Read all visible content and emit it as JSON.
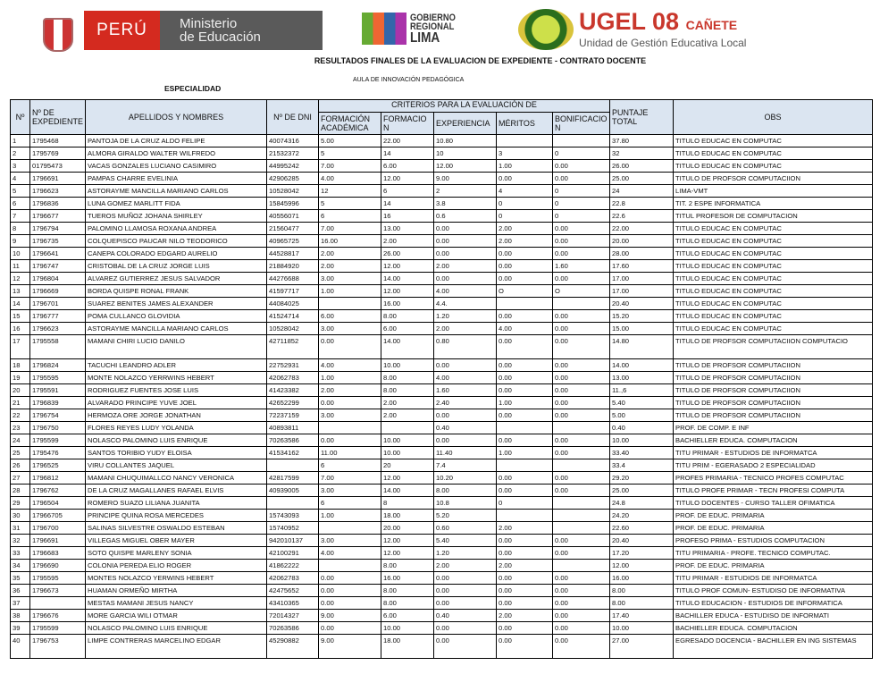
{
  "logos": {
    "peru": "PERÚ",
    "ministerio": "Ministerio",
    "educacion": "de Educación",
    "gobierno": "GOBIERNO",
    "regional": "REGIONAL",
    "lima": "LIMA",
    "ugel": "UGEL 08",
    "canete": "CAÑETE",
    "ugel_sub": "Unidad de Gestión Educativa Local"
  },
  "title": "RESULTADOS FINALES DE LA EVALUACION DE EXPEDIENTE - CONTRATO DOCENTE",
  "subtitle": "AULA DE INNOVACIÓN PEDAGÓGICA",
  "especialidad_label": "ESPECIALIDAD",
  "header": {
    "no": "Nº",
    "exp": "Nº DE EXPEDIENTE",
    "name": "APELLIDOS Y NOMBRES",
    "dni": "Nº DE DNI",
    "criterios": "CRITERIOS PARA LA EVALUACIÓN DE",
    "fa": "FORMACIÓN ACADÉMICA",
    "f": "FORMACION",
    "e": "EXPERIENCIA",
    "m": "MÉRITOS",
    "b": "BONIFICACION",
    "total": "PUNTAJE TOTAL",
    "obs": "OBS"
  },
  "header_color": "#dbe5f1",
  "rows": [
    [
      "1",
      "1795468",
      "PANTOJA DE LA CRUZ ALDO FELIPE",
      "40074316",
      "5.00",
      "22.00",
      "10.80",
      "",
      "",
      "37.80",
      "TITULO EDUCAC EN COMPUTAC"
    ],
    [
      "2",
      "1795769",
      "ALMORA GIRALDO  WALTER WILFREDO",
      "21532372",
      "5",
      "14",
      "10",
      "3",
      "0",
      "32",
      "TITULO EDUCAC EN COMPUTAC"
    ],
    [
      "3",
      "01795473",
      "VACAS GONZALES  LUCIANO CASIMIRO",
      "44995242",
      "7.00",
      "6.00",
      "12.00",
      "1.00",
      "0.00",
      "26.00",
      "TITULO EDUCAC EN COMPUTAC"
    ],
    [
      "4",
      "1796691",
      "PAMPAS CHARRE EVELINIA",
      "42906285",
      "4.00",
      "12.00",
      "9.00",
      "0.00",
      "0.00",
      "25.00",
      "TITULO DE PROFSOR COMPUTACIION"
    ],
    [
      "5",
      "1796623",
      "ASTORAYME MANCILLA MARIANO CARLOS",
      "10528042",
      "12",
      "6",
      "2",
      "4",
      "0",
      "24",
      "LIMA-VMT"
    ],
    [
      "6",
      "1796836",
      "LUNA GOMEZ MARLITT FIDA",
      "15845996",
      "5",
      "14",
      "3.8",
      "0",
      "0",
      "22.8",
      "TIT. 2 ESPE INFORMATICA"
    ],
    [
      "7",
      "1796677",
      "TUEROS MUÑOZ JOHANA SHIRLEY",
      "40556071",
      "6",
      "16",
      "0.6",
      "0",
      "0",
      "22.6",
      "TITUL PROFESOR DE COMPUTACION"
    ],
    [
      "8",
      "1796794",
      "PALOMINO LLAMOSA ROXANA ANDREA",
      "21560477",
      "7.00",
      "13.00",
      "0.00",
      "2.00",
      "0.00",
      "22.00",
      "TITULO EDUCAC EN COMPUTAC"
    ],
    [
      "9",
      "1796735",
      "COLQUEPISCO PAUCAR NILO TEODORICO",
      "40965725",
      "16.00",
      "2.00",
      "0.00",
      "2.00",
      "0.00",
      "20.00",
      "TITULO EDUCAC EN COMPUTAC"
    ],
    [
      "10",
      "1796641",
      "CANEPA COLORADO EDGARD AURELIO",
      "44528817",
      "2.00",
      "26.00",
      "0.00",
      "0.00",
      "0.00",
      "28.00",
      "TITULO EDUCAC EN COMPUTAC"
    ],
    [
      "11",
      "1796747",
      "CRISTOBAL DE LA CRUZ JORGE LUIS",
      "21884920",
      "2.00",
      "12.00",
      "2.00",
      "0.00",
      "1.60",
      "17.60",
      "TITULO EDUCAC EN COMPUTAC"
    ],
    [
      "12",
      "1796804",
      "ALVAREZ GUTIERREZ JESUS SALVADOR",
      "44276688",
      "3.00",
      "14.00",
      "0.00",
      "0.00",
      "0.00",
      "17.00",
      "TITULO EDUCAC EN COMPUTAC"
    ],
    [
      "13",
      "1796669",
      "BORDA QUISPE RONAL FRANK",
      "41597717",
      "1.00",
      "12.00",
      "4.00",
      "O",
      "O",
      "17.00",
      "TITULO EDUCAC EN COMPUTAC"
    ],
    [
      "14",
      "1796701",
      "SUAREZ BENITES JAMES ALEXANDER",
      "44084025",
      "",
      "16.00",
      "4.4.",
      "",
      "",
      "20.40",
      "TITULO EDUCAC EN COMPUTAC"
    ],
    [
      "15",
      "1796777",
      "POMA CULLANCO GLOVIDIA",
      "41524714",
      "6.00",
      "8.00",
      "1.20",
      "0.00",
      "0.00",
      "15.20",
      "TITULO EDUCAC EN COMPUTAC"
    ],
    [
      "16",
      "1796623",
      "ASTORAYME MANCILLA MARIANO CARLOS",
      "10528042",
      "3.00",
      "6.00",
      "2.00",
      "4.00",
      "0.00",
      "15.00",
      "TITULO EDUCAC EN COMPUTAC"
    ],
    [
      "17",
      "1795558",
      "MAMANI CHIRI LUCIO DANILO",
      "42711852",
      "0.00",
      "14.00",
      "0.80",
      "0.00",
      "0.00",
      "14.80",
      "TITULO DE PROFSOR COMPUTACIION COMPUTACIO"
    ],
    [
      "18",
      "1796824",
      "TACUCHI LEANDRO ADLER",
      "22752931",
      "4.00",
      "10.00",
      "0.00",
      "0.00",
      "0.00",
      "14.00",
      "TITULO DE PROFSOR COMPUTACIION"
    ],
    [
      "19",
      "1795595",
      "MONTE NOLAZCO YERRWINS HEBERT",
      "42062783",
      "1.00",
      "8.00",
      "4.00",
      "0.00",
      "0.00",
      "13.00",
      "TITULO DE PROFSOR COMPUTACIION"
    ],
    [
      "20",
      "1795591",
      "RODRIGUEZ FUENTES JOSE LUIS",
      "41423382",
      "2.00",
      "8.00",
      "1.60",
      "0.00",
      "0.00",
      "11.,6",
      "TITULO DE PROFSOR COMPUTACIION"
    ],
    [
      "21",
      "1796839",
      "ALVARADO PRINCIPE YUVE JOEL",
      "42652299",
      "0.00",
      "2.00",
      "2.40",
      "1.00",
      "0.00",
      "5.40",
      "TITULO DE PROFSOR COMPUTACIION"
    ],
    [
      "22",
      "1796754",
      "HERMOZA ORE JORGE JONATHAN",
      "72237159",
      "3.00",
      "2.00",
      "0.00",
      "0.00",
      "0.00",
      "5.00",
      "TITULO DE PROFSOR COMPUTACIION"
    ],
    [
      "23",
      "1796750",
      "FLORES REYES LUDY YOLANDA",
      "40893811",
      "",
      "",
      "0.40",
      "",
      "",
      "0.40",
      "PROF. DE COMP. E INF"
    ],
    [
      "24",
      "1795599",
      "NOLASCO PALOMINO LUIS ENRIQUE",
      "70263586",
      "0.00",
      "10.00",
      "0.00",
      "0.00",
      "0.00",
      "10.00",
      "BACHIELLER EDUCA. COMPUTACION"
    ],
    [
      "25",
      "1795476",
      "SANTOS TORIBIO YUDY ELOISA",
      "41534162",
      "11.00",
      "10.00",
      "11.40",
      "1.00",
      "0.00",
      "33.40",
      "TITU PRIMAR - ESTUDIOS DE INFORMATCA"
    ],
    [
      "26",
      "1796525",
      "VIRU COLLANTES JAQUEL",
      "",
      "6",
      "20",
      "7.4",
      "",
      "",
      "33.4",
      "TITU PRIM - EGERASADO 2 ESPECIALIDAD"
    ],
    [
      "27",
      "1796812",
      "MAMANI CHUQUIMALLCO NANCY VERONICA",
      "42817599",
      "7.00",
      "12.00",
      "10.20",
      "0.00",
      "0.00",
      "29.20",
      "PROFES PRIMARIA - TECNICO PROFES COMPUTAC"
    ],
    [
      "28",
      "1796762",
      "DE LA CRUZ MAGALLANES RAFAEL ELVIS",
      "40939005",
      "3.00",
      "14.00",
      "8.00",
      "0.00",
      "0.00",
      "25.00",
      "TITULO PROFE PRIMAR - TECN PROFESI COMPUTA"
    ],
    [
      "29",
      "1796504",
      "ROMERO SUAZO LILIANA JUANITA",
      "",
      "6",
      "8",
      "10.8",
      "0",
      "",
      "24.8",
      "TITULO DOCENTES  - CURSO TALLER OFIMATICA"
    ],
    [
      "30",
      "17966705",
      "PRINCIPE QUINA ROSA MERCEDES",
      "15743093",
      "1.00",
      "18.00",
      "5.20",
      "",
      "",
      "24.20",
      "PROF. DE EDUC. PRIMARIA"
    ],
    [
      "31",
      "1796700",
      "SALINAS SILVESTRE OSWALDO ESTEBAN",
      "15740952",
      "",
      "20.00",
      "0.60",
      "2.00",
      "",
      "22.60",
      "PROF. DE EDUC. PRIMARIA"
    ],
    [
      "32",
      "1796691",
      "VILLEGAS MIGUEL OBER MAYER",
      "942010137",
      "3.00",
      "12.00",
      "5.40",
      "0.00",
      "0.00",
      "20.40",
      "PROFESO PRIMA - ESTUDIOS COMPUTACION"
    ],
    [
      "33",
      "1796683",
      "SOTO QUISPE MARLENY SONIA",
      "42100291",
      "4.00",
      "12.00",
      "1.20",
      "0.00",
      "0.00",
      "17.20",
      "TITU PRIMARIA - PROFE. TECNICO COMPUTAC."
    ],
    [
      "34",
      "1796690",
      "COLONIA PEREDA ELIO ROGER",
      "41862222",
      "",
      "8.00",
      "2.00",
      "2.00",
      "",
      "12.00",
      "PROF. DE EDUC. PRIMARIA"
    ],
    [
      "35",
      "1795595",
      "MONTES NOLAZCO YERWINS HEBERT",
      "42062783",
      "0.00",
      "16.00",
      "0.00",
      "0.00",
      "0.00",
      "16.00",
      "TITU PRIMAR - ESTUDIOS DE INFORMATCA"
    ],
    [
      "36",
      "1796673",
      "HUAMAN ORMEÑO MIRTHA",
      "42475652",
      "0.00",
      "8.00",
      "0.00",
      "0.00",
      "0.00",
      "8.00",
      "TITULO PROF COMUN- ESTUDISO DE INFORMATIVA"
    ],
    [
      "37",
      "",
      "MESTAS MAMANI JESUS NANCY",
      "43410365",
      "0.00",
      "8.00",
      "0.00",
      "0.00",
      "0.00",
      "8.00",
      "TITULO EDUCACION - ESTUDIOS DE INFORMATICA"
    ],
    [
      "38",
      "1796676",
      "MORE GARCIA WILI OTMAR",
      "72014327",
      "9.00",
      "6.00",
      "0.40",
      "2.00",
      "0.00",
      "17.40",
      "BACHILLER EDUCA - ESTUDISO DE INFORMATI"
    ],
    [
      "39",
      "1795599",
      "NOLASCO PALOMINO LUIS ENRIQUE",
      "70263586",
      "0.00",
      "10.00",
      "0.00",
      "0.00",
      "0.00",
      "10.00",
      "BACHIELLER EDUCA. COMPUTACION"
    ],
    [
      "40",
      "1796753",
      "LIMPE CONTRERAS MARCELINO EDGAR",
      "45290882",
      "9.00",
      "18.00",
      "0.00",
      "0.00",
      "0.00",
      "27.00",
      "EGRESADO DOCENCIA - BACHILLER EN ING SISTEMAS"
    ]
  ]
}
